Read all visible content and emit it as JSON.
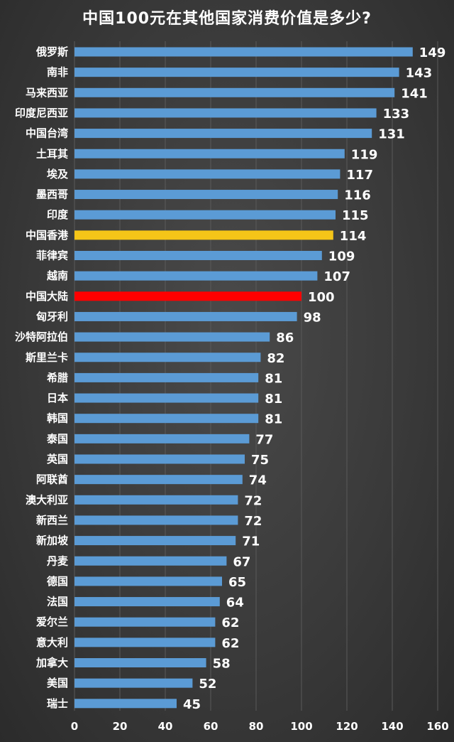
{
  "chart_data": {
    "type": "bar",
    "orientation": "horizontal",
    "title": "中国100元在其他国家消费价值是多少?",
    "categories": [
      "俄罗斯",
      "南非",
      "马来西亚",
      "印度尼西亚",
      "中国台湾",
      "土耳其",
      "埃及",
      "墨西哥",
      "印度",
      "中国香港",
      "菲律宾",
      "越南",
      "中国大陆",
      "匈牙利",
      "沙特阿拉伯",
      "斯里兰卡",
      "希腊",
      "日本",
      "韩国",
      "泰国",
      "英国",
      "阿联酋",
      "澳大利亚",
      "新西兰",
      "新加坡",
      "丹麦",
      "德国",
      "法国",
      "爱尔兰",
      "意大利",
      "加拿大",
      "美国",
      "瑞士"
    ],
    "values": [
      149,
      143,
      141,
      133,
      131,
      119,
      117,
      116,
      115,
      114,
      109,
      107,
      100,
      98,
      86,
      82,
      81,
      81,
      81,
      77,
      75,
      74,
      72,
      72,
      71,
      67,
      65,
      64,
      62,
      62,
      58,
      52,
      45
    ],
    "xlim": [
      0,
      160
    ],
    "xticks": [
      0,
      20,
      40,
      60,
      80,
      100,
      120,
      140,
      160
    ],
    "grid": true,
    "colors": {
      "default": "#5b9bd5",
      "highlight_hk": "#f5c518",
      "highlight_mainland": "#ff0000"
    },
    "highlights": {
      "中国香港": "#f5c518",
      "中国大陆": "#ff0000"
    }
  }
}
